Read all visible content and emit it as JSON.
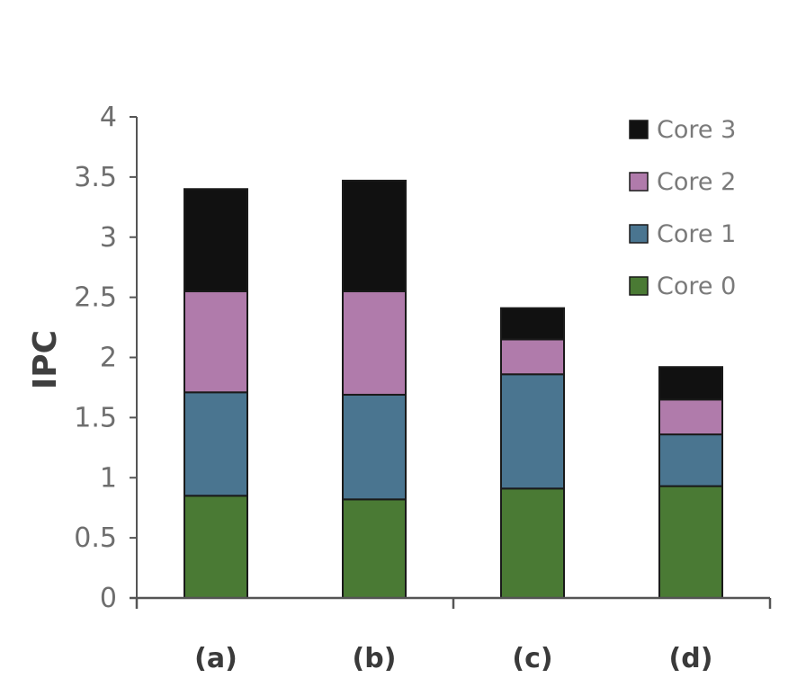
{
  "chart_data": {
    "type": "bar",
    "stacked": true,
    "title": "",
    "xlabel": "",
    "ylabel": "IPC",
    "categories": [
      "(a)",
      "(b)",
      "(c)",
      "(d)"
    ],
    "ylim": [
      0,
      4
    ],
    "yticks": [
      "0",
      "0.5",
      "1",
      "1.5",
      "2",
      "2.5",
      "3",
      "3.5",
      "4"
    ],
    "grid": false,
    "legend_position": "top-right",
    "series": [
      {
        "name": "Core 0",
        "color": "#4a7a34",
        "values": [
          0.85,
          0.82,
          0.91,
          0.93
        ]
      },
      {
        "name": "Core 1",
        "color": "#4a7590",
        "values": [
          0.86,
          0.87,
          0.95,
          0.43
        ]
      },
      {
        "name": "Core 2",
        "color": "#b07bab",
        "values": [
          0.84,
          0.86,
          0.29,
          0.29
        ]
      },
      {
        "name": "Core 3",
        "color": "#111111",
        "values": [
          0.85,
          0.92,
          0.26,
          0.27
        ]
      }
    ]
  }
}
